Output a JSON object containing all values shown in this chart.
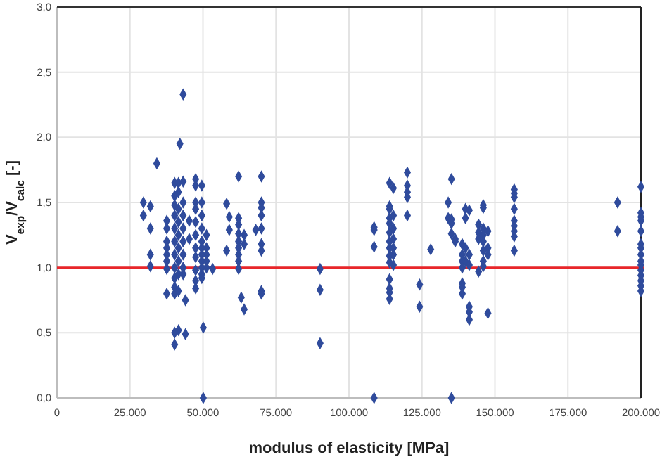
{
  "chart_data": {
    "type": "scatter",
    "xlabel": "modulus of elasticity [MPa]",
    "ylabel": "V$_{exp}$/V$_{calc}$ [-]",
    "xlim": [
      0,
      200000
    ],
    "ylim": [
      0,
      3
    ],
    "xticks": [
      0,
      {
        "value": 25000,
        "label": "25.000"
      },
      {
        "value": 50000,
        "label": "50.000"
      },
      {
        "value": 75000,
        "label": "75.000"
      },
      {
        "value": 100000,
        "label": "100.000"
      },
      {
        "value": 125000,
        "label": "125.000"
      },
      {
        "value": 150000,
        "label": "150.000"
      },
      {
        "value": 175000,
        "label": "175.000"
      },
      {
        "value": 200000,
        "label": "200.000"
      }
    ],
    "yticks": [
      {
        "value": 0,
        "label": "0,0"
      },
      {
        "value": 0.5,
        "label": "0,5"
      },
      {
        "value": 1,
        "label": "1,0"
      },
      {
        "value": 1.5,
        "label": "1,5"
      },
      {
        "value": 2,
        "label": "2,0"
      },
      {
        "value": 2.5,
        "label": "2,5"
      },
      {
        "value": 3,
        "label": "3,0"
      }
    ],
    "grid": true,
    "marker": "diamond",
    "ref_lines": [
      {
        "axis": "y",
        "value": 1,
        "color": "#e8262a"
      }
    ],
    "x": [
      29600,
      29600,
      32000,
      32000,
      32000,
      32000,
      34200,
      37600,
      37600,
      37600,
      37600,
      37600,
      37600,
      37600,
      37600,
      40300,
      40300,
      40300,
      40300,
      40300,
      40300,
      40300,
      40300,
      40300,
      40300,
      40300,
      40300,
      40300,
      41600,
      41600,
      41600,
      41600,
      41600,
      41600,
      41600,
      41600,
      41600,
      41600,
      42100,
      43200,
      43200,
      43200,
      43200,
      43200,
      43200,
      43200,
      43200,
      43200,
      44000,
      44000,
      45300,
      45300,
      47500,
      47500,
      47500,
      47500,
      47500,
      47500,
      47500,
      47500,
      47500,
      47500,
      47500,
      49600,
      49600,
      49600,
      49600,
      49600,
      49600,
      49600,
      49600,
      49600,
      49600,
      49600,
      50100,
      50100,
      51200,
      51200,
      51200,
      51200,
      51200,
      53300,
      58100,
      58100,
      59000,
      59000,
      62200,
      62200,
      62200,
      62200,
      62200,
      62200,
      62200,
      62200,
      62200,
      63100,
      64100,
      64100,
      64100,
      68100,
      70000,
      70000,
      70000,
      70000,
      70000,
      70000,
      70000,
      70000,
      70000,
      90100,
      90100,
      90100,
      108600,
      108600,
      108600,
      108600,
      113900,
      113900,
      113900,
      113900,
      113900,
      113900,
      113900,
      113900,
      113900,
      113900,
      113900,
      113900,
      113900,
      113900,
      115200,
      115200,
      115200,
      115200,
      115200,
      115200,
      115200,
      120000,
      120000,
      120000,
      120000,
      120000,
      124200,
      124200,
      128000,
      134000,
      134000,
      135100,
      135100,
      135100,
      135100,
      135100,
      136400,
      136400,
      138800,
      138800,
      138800,
      138800,
      138800,
      138800,
      138800,
      139900,
      139900,
      139900,
      139900,
      141200,
      141200,
      141200,
      141200,
      141200,
      141200,
      144400,
      144400,
      144400,
      144400,
      146000,
      146000,
      146000,
      146000,
      146000,
      146000,
      146000,
      146000,
      147600,
      147600,
      147600,
      147600,
      156600,
      156600,
      156600,
      156600,
      156600,
      156600,
      156600,
      156600,
      156600,
      192000,
      192000,
      200000,
      200000,
      200000,
      200000,
      200000,
      200000,
      200000,
      200000,
      200000,
      200000,
      200000,
      200000,
      200000,
      200000,
      200000
    ],
    "series": [
      {
        "color": "#2f4b9c",
        "values": [
          1.5,
          1.4,
          1.47,
          1.3,
          1.1,
          1.01,
          1.8,
          1.36,
          1.3,
          1.2,
          1.15,
          1.1,
          1.05,
          0.99,
          0.8,
          1.65,
          1.55,
          1.48,
          1.4,
          1.3,
          1.2,
          1.1,
          1.0,
          0.92,
          0.85,
          0.8,
          0.5,
          0.41,
          1.65,
          1.58,
          1.45,
          1.35,
          1.25,
          1.15,
          1.05,
          0.95,
          0.82,
          0.52,
          1.95,
          2.33,
          1.66,
          1.5,
          1.4,
          1.3,
          1.2,
          1.1,
          1.0,
          0.95,
          0.75,
          0.49,
          1.36,
          1.22,
          1.68,
          1.63,
          1.5,
          1.45,
          1.35,
          1.25,
          1.15,
          1.08,
          0.98,
          0.9,
          0.84,
          1.63,
          1.5,
          1.4,
          1.3,
          1.2,
          1.15,
          1.1,
          1.05,
          1.0,
          0.95,
          0.92,
          0.54,
          0.0,
          1.25,
          1.15,
          1.1,
          1.05,
          1.0,
          0.99,
          1.49,
          1.13,
          1.39,
          1.29,
          1.7,
          1.38,
          1.33,
          1.26,
          1.2,
          1.15,
          1.1,
          1.05,
          0.99,
          0.77,
          0.68,
          1.25,
          1.18,
          1.29,
          1.7,
          1.5,
          1.46,
          1.4,
          1.3,
          1.18,
          1.13,
          0.82,
          0.8,
          0.99,
          0.83,
          0.42,
          1.31,
          1.29,
          1.16,
          0.0,
          1.65,
          1.47,
          1.45,
          1.38,
          1.34,
          1.27,
          1.2,
          1.15,
          1.09,
          1.04,
          0.91,
          0.84,
          0.81,
          0.76,
          1.61,
          1.4,
          1.3,
          1.22,
          1.15,
          1.1,
          1.02,
          1.73,
          1.63,
          1.58,
          1.54,
          1.4,
          0.87,
          0.7,
          1.14,
          1.5,
          1.38,
          1.68,
          1.37,
          1.34,
          1.26,
          0.0,
          1.22,
          1.2,
          1.18,
          1.1,
          1.05,
          1.0,
          0.88,
          0.85,
          0.8,
          1.45,
          1.38,
          1.15,
          1.05,
          1.44,
          1.1,
          1.02,
          0.7,
          0.66,
          0.6,
          1.33,
          1.27,
          1.22,
          0.97,
          1.48,
          1.46,
          1.3,
          1.25,
          1.2,
          1.13,
          1.05,
          1.01,
          1.28,
          1.15,
          1.1,
          0.65,
          1.6,
          1.57,
          1.54,
          1.45,
          1.36,
          1.32,
          1.28,
          1.24,
          1.13,
          1.5,
          1.28,
          1.62,
          1.42,
          1.39,
          1.36,
          1.28,
          1.18,
          1.15,
          1.1,
          1.05,
          1.02,
          0.98,
          0.94,
          0.9,
          0.86,
          0.82
        ]
      }
    ]
  }
}
